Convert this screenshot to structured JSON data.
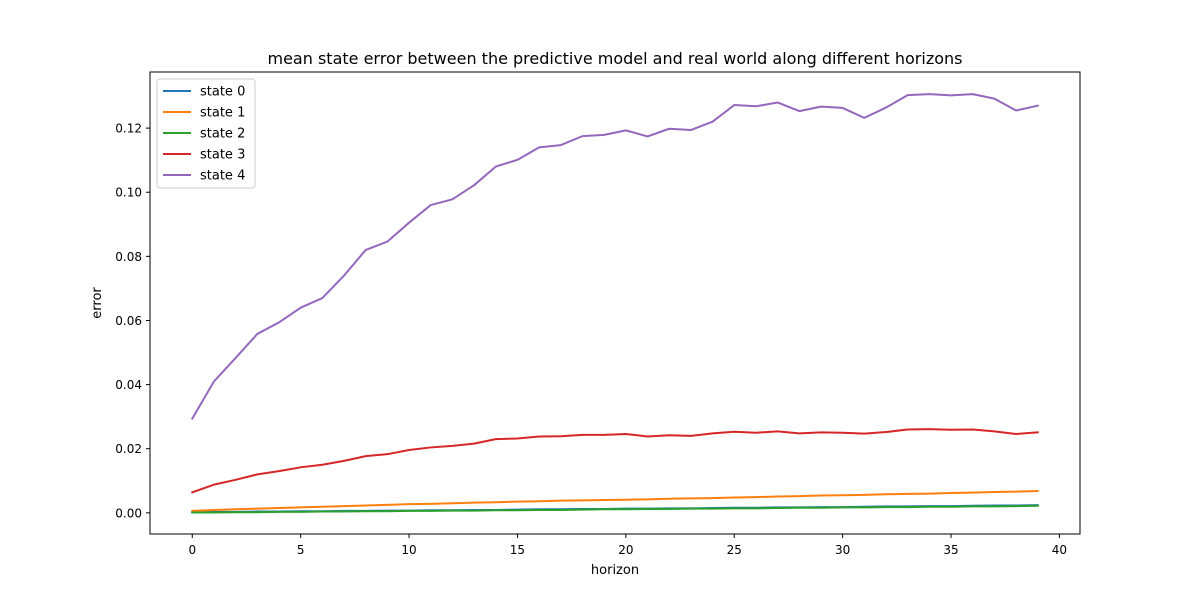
{
  "chart_data": {
    "type": "line",
    "title": "mean state error between the predictive model and real world along different horizons",
    "xlabel": "horizon",
    "ylabel": "error",
    "xlim": [
      -1.95,
      40.95
    ],
    "ylim": [
      -0.0066,
      0.1375
    ],
    "xticks": [
      0,
      5,
      10,
      15,
      20,
      25,
      30,
      35,
      40
    ],
    "yticks": [
      0.0,
      0.02,
      0.04,
      0.06,
      0.08,
      0.1,
      0.12
    ],
    "ytick_labels": [
      "0.00",
      "0.02",
      "0.04",
      "0.06",
      "0.08",
      "0.10",
      "0.12"
    ],
    "grid": false,
    "legend_position": "top-left",
    "x": [
      0,
      1,
      2,
      3,
      4,
      5,
      6,
      7,
      8,
      9,
      10,
      11,
      12,
      13,
      14,
      15,
      16,
      17,
      18,
      19,
      20,
      21,
      22,
      23,
      24,
      25,
      26,
      27,
      28,
      29,
      30,
      31,
      32,
      33,
      34,
      35,
      36,
      37,
      38,
      39
    ],
    "series": [
      {
        "name": "state 0",
        "color": "#1f77b4",
        "values": [
          0.0002,
          0.0003,
          0.0003,
          0.0004,
          0.0004,
          0.0005,
          0.0005,
          0.0006,
          0.0006,
          0.0007,
          0.0007,
          0.0008,
          0.0008,
          0.0009,
          0.0009,
          0.001,
          0.0011,
          0.0011,
          0.0012,
          0.0012,
          0.0013,
          0.0013,
          0.0014,
          0.0014,
          0.0015,
          0.0016,
          0.0016,
          0.0017,
          0.0017,
          0.0018,
          0.0018,
          0.0019,
          0.002,
          0.002,
          0.0021,
          0.0021,
          0.0022,
          0.0023,
          0.0023,
          0.0024
        ]
      },
      {
        "name": "state 1",
        "color": "#ff7f0e",
        "values": [
          0.0006,
          0.0009,
          0.0011,
          0.0013,
          0.0015,
          0.0017,
          0.0019,
          0.0021,
          0.0023,
          0.0025,
          0.0027,
          0.0028,
          0.003,
          0.0032,
          0.0033,
          0.0035,
          0.0036,
          0.0038,
          0.0039,
          0.004,
          0.0041,
          0.0042,
          0.0044,
          0.0045,
          0.0046,
          0.0048,
          0.0049,
          0.0051,
          0.0052,
          0.0054,
          0.0055,
          0.0056,
          0.0058,
          0.0059,
          0.006,
          0.0062,
          0.0063,
          0.0065,
          0.0066,
          0.0068
        ]
      },
      {
        "name": "state 2",
        "color": "#2ca02c",
        "values": [
          0.0001,
          0.0001,
          0.0002,
          0.0002,
          0.0003,
          0.0003,
          0.0004,
          0.0004,
          0.0005,
          0.0005,
          0.0006,
          0.0006,
          0.0007,
          0.0007,
          0.0008,
          0.0008,
          0.0009,
          0.0009,
          0.001,
          0.0011,
          0.0011,
          0.0012,
          0.0012,
          0.0013,
          0.0013,
          0.0014,
          0.0014,
          0.0015,
          0.0016,
          0.0016,
          0.0017,
          0.0017,
          0.0018,
          0.0018,
          0.0019,
          0.0019,
          0.002,
          0.002,
          0.0021,
          0.0022
        ]
      },
      {
        "name": "state 3",
        "color": "#d62728",
        "values": [
          0.0064,
          0.0088,
          0.0103,
          0.012,
          0.013,
          0.0142,
          0.015,
          0.0162,
          0.0177,
          0.0183,
          0.0196,
          0.0204,
          0.0209,
          0.0216,
          0.023,
          0.0232,
          0.0238,
          0.0239,
          0.0243,
          0.0243,
          0.0246,
          0.0238,
          0.0242,
          0.024,
          0.0248,
          0.0253,
          0.025,
          0.0254,
          0.0248,
          0.0251,
          0.025,
          0.0247,
          0.0252,
          0.026,
          0.0261,
          0.0259,
          0.026,
          0.0254,
          0.0246,
          0.0251
        ]
      },
      {
        "name": "state 4",
        "color": "#9467bd",
        "values": [
          0.0294,
          0.041,
          0.0483,
          0.0558,
          0.0594,
          0.064,
          0.067,
          0.074,
          0.082,
          0.0846,
          0.0905,
          0.096,
          0.0978,
          0.1022,
          0.108,
          0.1101,
          0.114,
          0.1147,
          0.1175,
          0.1179,
          0.1193,
          0.1174,
          0.1198,
          0.1194,
          0.122,
          0.1272,
          0.1268,
          0.128,
          0.1253,
          0.1267,
          0.1263,
          0.1232,
          0.1264,
          0.1303,
          0.1306,
          0.1302,
          0.1306,
          0.1292,
          0.1255,
          0.127
        ]
      }
    ]
  }
}
